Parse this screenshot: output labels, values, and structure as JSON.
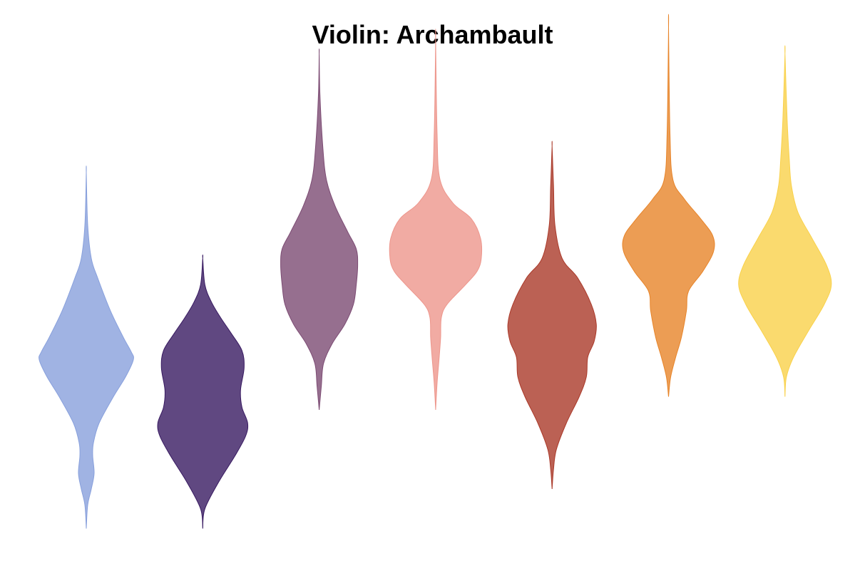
{
  "chart_data": {
    "type": "violin",
    "title": "Violin: Archambault",
    "xlabel": "",
    "ylabel": "",
    "axes_visible": false,
    "grid": false,
    "series": [
      {
        "color": "#88a0dc",
        "min": 0.5,
        "max": 3.2,
        "profile": [
          [
            0.5,
            0.0
          ],
          [
            0.68,
            0.02
          ],
          [
            0.8,
            0.07
          ],
          [
            0.92,
            0.11
          ],
          [
            1.05,
            0.09
          ],
          [
            1.15,
            0.1
          ],
          [
            1.3,
            0.18
          ],
          [
            1.5,
            0.38
          ],
          [
            1.65,
            0.55
          ],
          [
            1.78,
            0.66
          ],
          [
            1.84,
            0.63
          ],
          [
            1.95,
            0.52
          ],
          [
            2.15,
            0.34
          ],
          [
            2.4,
            0.16
          ],
          [
            2.55,
            0.07
          ],
          [
            2.8,
            0.02
          ],
          [
            3.2,
            0.0
          ]
        ]
      },
      {
        "color": "#381a61",
        "min": 0.5,
        "max": 2.55,
        "profile": [
          [
            0.5,
            0.0
          ],
          [
            0.65,
            0.03
          ],
          [
            0.85,
            0.22
          ],
          [
            1.05,
            0.45
          ],
          [
            1.2,
            0.6
          ],
          [
            1.3,
            0.63
          ],
          [
            1.42,
            0.55
          ],
          [
            1.55,
            0.53
          ],
          [
            1.72,
            0.58
          ],
          [
            1.85,
            0.55
          ],
          [
            1.98,
            0.4
          ],
          [
            2.1,
            0.25
          ],
          [
            2.22,
            0.12
          ],
          [
            2.35,
            0.03
          ],
          [
            2.55,
            0.0
          ]
        ]
      },
      {
        "color": "#7c4b73",
        "min": 1.4,
        "max": 4.1,
        "profile": [
          [
            1.4,
            0.0
          ],
          [
            1.58,
            0.03
          ],
          [
            1.75,
            0.06
          ],
          [
            1.9,
            0.18
          ],
          [
            2.05,
            0.36
          ],
          [
            2.2,
            0.48
          ],
          [
            2.35,
            0.52
          ],
          [
            2.5,
            0.54
          ],
          [
            2.62,
            0.52
          ],
          [
            2.75,
            0.4
          ],
          [
            2.95,
            0.22
          ],
          [
            3.15,
            0.1
          ],
          [
            3.4,
            0.05
          ],
          [
            3.8,
            0.01
          ],
          [
            4.1,
            0.0
          ]
        ]
      },
      {
        "color": "#ed968c",
        "min": 1.4,
        "max": 4.2,
        "profile": [
          [
            1.4,
            0.0
          ],
          [
            1.6,
            0.02
          ],
          [
            1.8,
            0.05
          ],
          [
            1.95,
            0.07
          ],
          [
            2.1,
            0.08
          ],
          [
            2.2,
            0.16
          ],
          [
            2.35,
            0.42
          ],
          [
            2.45,
            0.58
          ],
          [
            2.55,
            0.64
          ],
          [
            2.7,
            0.63
          ],
          [
            2.85,
            0.5
          ],
          [
            2.97,
            0.24
          ],
          [
            3.15,
            0.06
          ],
          [
            3.5,
            0.02
          ],
          [
            4.2,
            0.0
          ]
        ]
      },
      {
        "color": "#aa3929",
        "min": 0.8,
        "max": 3.4,
        "profile": [
          [
            0.8,
            0.0
          ],
          [
            0.95,
            0.02
          ],
          [
            1.1,
            0.06
          ],
          [
            1.3,
            0.2
          ],
          [
            1.5,
            0.38
          ],
          [
            1.65,
            0.48
          ],
          [
            1.8,
            0.5
          ],
          [
            1.92,
            0.59
          ],
          [
            2.05,
            0.62
          ],
          [
            2.2,
            0.55
          ],
          [
            2.4,
            0.36
          ],
          [
            2.55,
            0.14
          ],
          [
            2.8,
            0.04
          ],
          [
            3.1,
            0.02
          ],
          [
            3.4,
            0.0
          ]
        ]
      },
      {
        "color": "#e78429",
        "min": 1.5,
        "max": 4.3,
        "profile": [
          [
            1.5,
            0.0
          ],
          [
            1.65,
            0.03
          ],
          [
            1.8,
            0.1
          ],
          [
            1.95,
            0.18
          ],
          [
            2.15,
            0.25
          ],
          [
            2.3,
            0.28
          ],
          [
            2.45,
            0.48
          ],
          [
            2.6,
            0.63
          ],
          [
            2.72,
            0.62
          ],
          [
            2.85,
            0.45
          ],
          [
            3.0,
            0.22
          ],
          [
            3.15,
            0.06
          ],
          [
            3.5,
            0.02
          ],
          [
            4.3,
            0.0
          ]
        ]
      },
      {
        "color": "#f9d14a",
        "min": 1.5,
        "max": 4.1,
        "profile": [
          [
            1.5,
            0.0
          ],
          [
            1.65,
            0.02
          ],
          [
            1.8,
            0.12
          ],
          [
            2.0,
            0.33
          ],
          [
            2.2,
            0.55
          ],
          [
            2.35,
            0.65
          ],
          [
            2.5,
            0.58
          ],
          [
            2.7,
            0.38
          ],
          [
            2.9,
            0.18
          ],
          [
            3.1,
            0.09
          ],
          [
            3.3,
            0.06
          ],
          [
            3.6,
            0.03
          ],
          [
            4.1,
            0.0
          ]
        ]
      }
    ]
  }
}
